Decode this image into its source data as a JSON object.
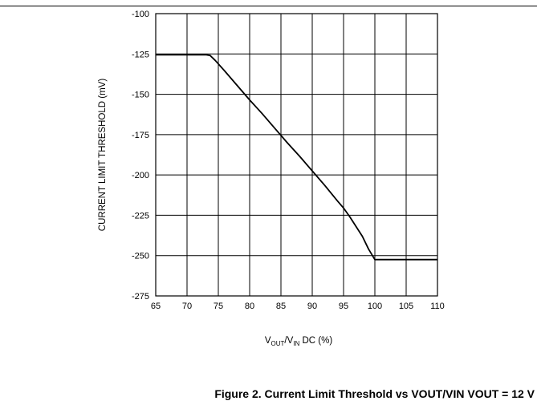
{
  "caption": "Figure 2. Current Limit Threshold vs VOUT/VIN VOUT = 12 V",
  "chart_data": {
    "type": "line",
    "title": "",
    "xlabel_parts": {
      "v1": "V",
      "sub1": "OUT",
      "slash": "/V",
      "sub2": "IN",
      "rest": " DC (%)"
    },
    "ylabel": "CURRENT LIMIT THRESHOLD (mV)",
    "xlim": [
      65,
      110
    ],
    "ylim": [
      -275,
      -100
    ],
    "xticks": [
      "65",
      "70",
      "75",
      "80",
      "85",
      "90",
      "95",
      "100",
      "105",
      "110"
    ],
    "yticks": [
      "-100",
      "-125",
      "-150",
      "-175",
      "-200",
      "-225",
      "-250",
      "-275"
    ],
    "grid": true,
    "series": [
      {
        "color": "#000000",
        "x": [
          65,
          70,
          73,
          73.7,
          74.5,
          76,
          78,
          80,
          82,
          84,
          86,
          88,
          90,
          92,
          94,
          95,
          96,
          97,
          98,
          99,
          100,
          102,
          105,
          110
        ],
        "y": [
          -125.5,
          -125.5,
          -125.5,
          -126,
          -129,
          -135.5,
          -144.5,
          -153.5,
          -162,
          -171,
          -180,
          -188.5,
          -197.5,
          -206.5,
          -216,
          -220.5,
          -226,
          -232,
          -238,
          -246,
          -252.5,
          -252.5,
          -252.5,
          -252.5
        ]
      }
    ]
  }
}
